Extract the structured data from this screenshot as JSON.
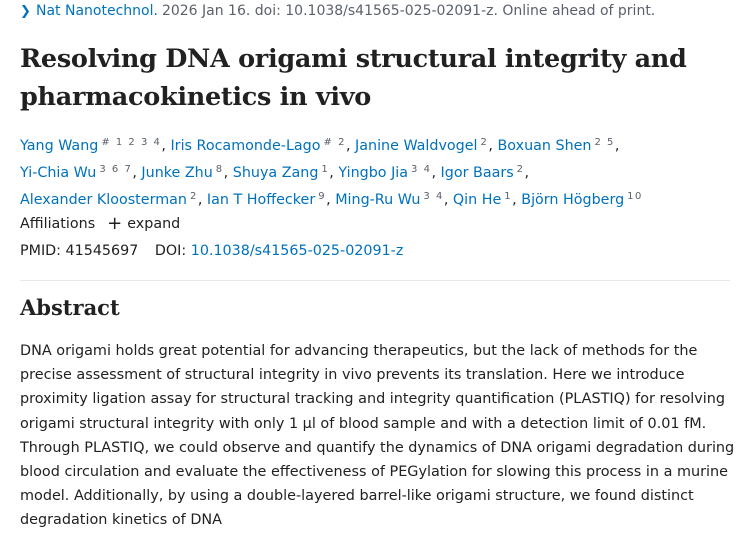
{
  "citation": {
    "journal": "Nat Nanotechnol.",
    "rest": " 2026 Jan 16. doi: 10.1038/s41565-025-02091-z. Online ahead of print."
  },
  "title": "Resolving DNA origami structural integrity and pharmacokinetics in vivo",
  "authors": [
    [
      {
        "name": "Yang Wang",
        "sup": "# 1 2 3 4",
        "sep": ","
      },
      {
        "name": "Iris Rocamonde-Lago",
        "sup": "# 2",
        "sep": ","
      },
      {
        "name": "Janine Waldvogel",
        "sup": "2",
        "sep": ","
      },
      {
        "name": "Boxuan Shen",
        "sup": "2 5",
        "sep": ","
      }
    ],
    [
      {
        "name": "Yi-Chia Wu",
        "sup": "3 6 7",
        "sep": ","
      },
      {
        "name": "Junke Zhu",
        "sup": "8",
        "sep": ","
      },
      {
        "name": "Shuya Zang",
        "sup": "1",
        "sep": ","
      },
      {
        "name": "Yingbo Jia",
        "sup": "3 4",
        "sep": ","
      },
      {
        "name": "Igor Baars",
        "sup": "2",
        "sep": ","
      }
    ],
    [
      {
        "name": "Alexander Kloosterman",
        "sup": "2",
        "sep": ","
      },
      {
        "name": "Ian T Hoffecker",
        "sup": "9",
        "sep": ","
      },
      {
        "name": "Ming-Ru Wu",
        "sup": "3 4",
        "sep": ","
      },
      {
        "name": "Qin He",
        "sup": "1",
        "sep": ","
      },
      {
        "name": "Björn Högberg",
        "sup": "10",
        "sep": ""
      }
    ]
  ],
  "affiliations": {
    "label": "Affiliations",
    "expand_label": "expand",
    "expand_icon": "plus-icon"
  },
  "ids": {
    "pmid_label": "PMID:",
    "pmid": "41545697",
    "doi_label": "DOI:",
    "doi": "10.1038/s41565-025-02091-z"
  },
  "abstract": {
    "heading": "Abstract",
    "text": "DNA origami holds great potential for advancing therapeutics, but the lack of methods for the precise assessment of structural integrity in vivo prevents its translation. Here we introduce proximity ligation assay for structural tracking and integrity quantification (PLASTIQ) for resolving origami structural integrity with only 1 µl of blood sample and with a detection limit of 0.01 fM. Through PLASTIQ, we could observe and quantify the dynamics of DNA origami degradation during blood circulation and evaluate the effectiveness of PEGylation for slowing this process in a murine model. Additionally, by using a double-layered barrel-like origami structure, we found distinct degradation kinetics of DNA"
  },
  "colors": {
    "link": "#0071bc",
    "text": "#212121",
    "muted": "#5b616b"
  }
}
